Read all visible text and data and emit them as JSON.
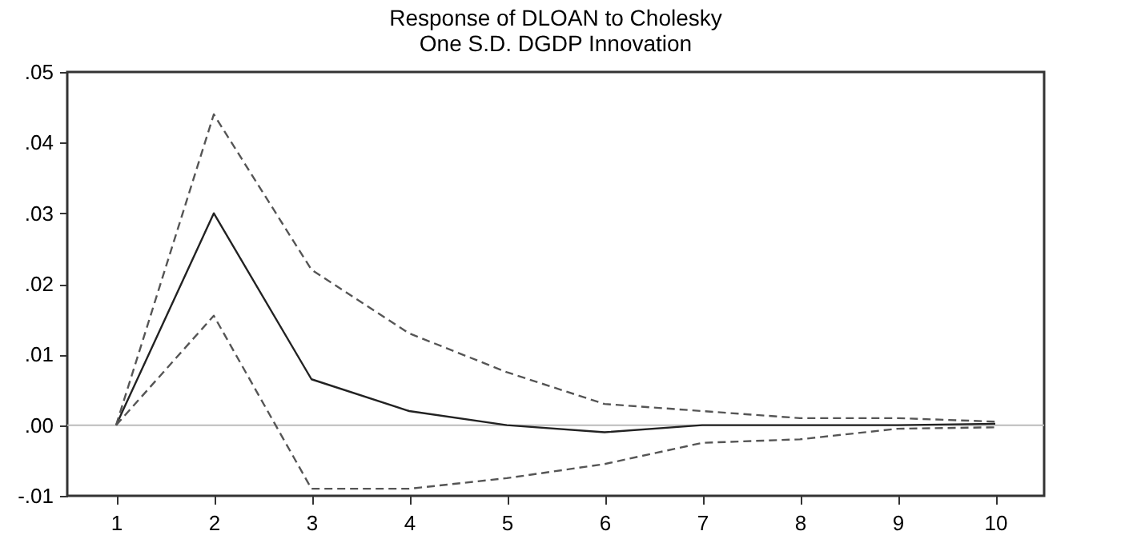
{
  "chart_data": {
    "type": "line",
    "title": "Response of DLOAN to Cholesky\nOne S.D. DGDP Innovation",
    "categories": [
      "1",
      "2",
      "3",
      "4",
      "5",
      "6",
      "7",
      "8",
      "9",
      "10"
    ],
    "series": [
      {
        "color": "#222222",
        "line_style": "solid",
        "values": [
          0,
          0.03,
          0.0065,
          0.002,
          0.0,
          -0.001,
          0.0,
          0.0,
          0.0,
          0.0002
        ]
      },
      {
        "color": "#555555",
        "line_style": "dashed",
        "values": [
          0,
          0.044,
          0.022,
          0.013,
          0.0075,
          0.003,
          0.002,
          0.001,
          0.001,
          0.0005
        ]
      },
      {
        "color": "#555555",
        "line_style": "dashed",
        "values": [
          0,
          0.0155,
          -0.009,
          -0.009,
          -0.0075,
          -0.0055,
          -0.0025,
          -0.002,
          -0.0005,
          -0.0003
        ]
      }
    ],
    "ylim": [
      -0.01,
      0.05
    ],
    "yticks": [
      {
        "value": -0.01,
        "label": "-.01"
      },
      {
        "value": 0,
        "label": ".00"
      },
      {
        "value": 0.01,
        "label": ".01"
      },
      {
        "value": 0.02,
        "label": ".02"
      },
      {
        "value": 0.03,
        "label": ".03"
      },
      {
        "value": 0.04,
        "label": ".04"
      },
      {
        "value": 0.05,
        "label": ".05"
      }
    ],
    "ref_lines": [
      {
        "axis": "y",
        "value": 0,
        "color": "#bbbbbb"
      }
    ],
    "grid": false
  }
}
